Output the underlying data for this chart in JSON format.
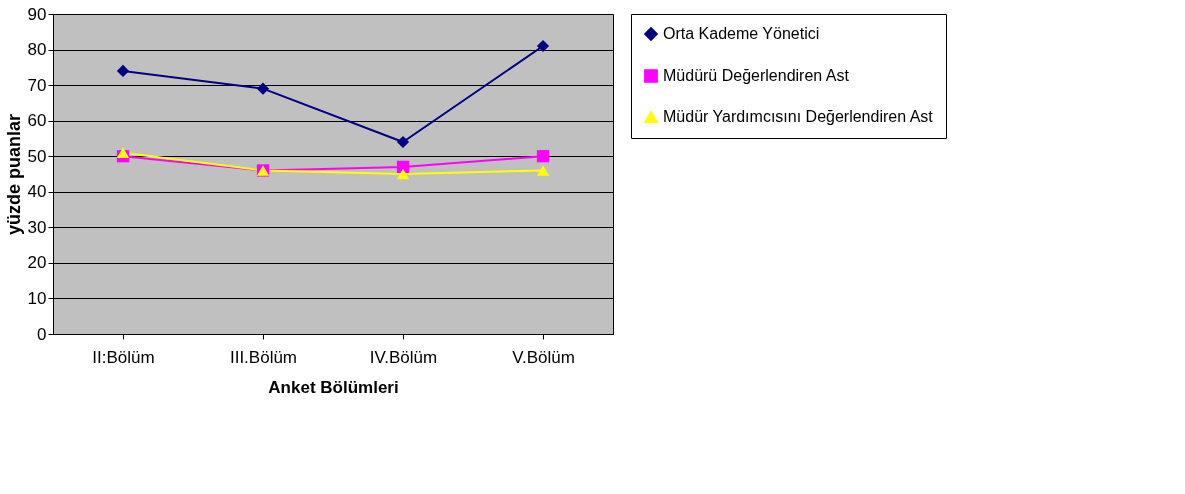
{
  "chart_data": {
    "type": "line",
    "xlabel": "Anket Bölümleri",
    "ylabel": "yüzde puanlar",
    "categories": [
      "II:Bölüm",
      "III.Bölüm",
      "IV.Bölüm",
      "V.Bölüm"
    ],
    "series": [
      {
        "name": "Orta Kademe Yönetici",
        "color": "#000080",
        "marker": "diamond",
        "values": [
          74,
          69,
          54,
          81
        ]
      },
      {
        "name": "Müdürü Değerlendiren Ast",
        "color": "#ff00ff",
        "marker": "square",
        "values": [
          50,
          46,
          47,
          50
        ]
      },
      {
        "name": "Müdür Yardımcısını Değerlendiren Ast",
        "color": "#ffff00",
        "marker": "triangle",
        "values": [
          51,
          46,
          45,
          46
        ]
      }
    ],
    "ylim": [
      0,
      90
    ],
    "yticks": [
      0,
      10,
      20,
      30,
      40,
      50,
      60,
      70,
      80,
      90
    ],
    "grid": "y",
    "legend": "right",
    "line_style": "solid"
  }
}
